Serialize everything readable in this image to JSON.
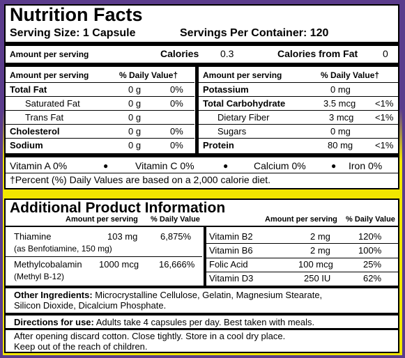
{
  "nutrition": {
    "title": "Nutrition Facts",
    "serving_size": "Serving Size: 1 Capsule",
    "servings_per_container": "Servings Per Container: 120",
    "amount_per_serving": "Amount per serving",
    "calories_label": "Calories",
    "calories_value": "0.3",
    "calories_fat_label": "Calories from Fat",
    "calories_fat_value": "0",
    "left_table": {
      "h_amount": "Amount per serving",
      "h_dv": "% Daily Value†",
      "rows": [
        {
          "name": "Total Fat",
          "amount": "0 g",
          "dv": "0%"
        },
        {
          "name": "Saturated Fat",
          "amount": "0 g",
          "dv": "0%"
        },
        {
          "name": "Trans Fat",
          "amount": "0 g",
          "dv": ""
        },
        {
          "name": "Cholesterol",
          "amount": "0 g",
          "dv": "0%"
        },
        {
          "name": "Sodium",
          "amount": "0 g",
          "dv": "0%"
        }
      ]
    },
    "right_table": {
      "h_amount": "Amount per serving",
      "h_dv": "% Daily Value†",
      "rows": [
        {
          "name": "Potassium",
          "amount": "0 mg",
          "dv": ""
        },
        {
          "name": "Total Carbohydrate",
          "amount": "3.5 mcg",
          "dv": "<1%"
        },
        {
          "name": "Dietary Fiber",
          "amount": "3 mcg",
          "dv": "<1%"
        },
        {
          "name": "Sugars",
          "amount": "0 mg",
          "dv": ""
        },
        {
          "name": "Protein",
          "amount": "80 mg",
          "dv": "<1%"
        }
      ]
    },
    "vitamins": [
      "Vitamin A 0%",
      "Vitamin C 0%",
      "Calcium 0%",
      "Iron 0%"
    ],
    "footnote": "†Percent (%) Daily Values are based on a 2,000 calorie diet."
  },
  "additional": {
    "title": "Additional Product Information",
    "h_amount": "Amount per serving",
    "h_dv": "% Daily Value",
    "left": [
      {
        "name": "Thiamine",
        "amount": "103 mg",
        "dv": "6,875%",
        "sub": "(as Benfotiamine, 150 mg)"
      },
      {
        "name": "Methylcobalamin",
        "amount": "1000 mcg",
        "dv": "16,666%",
        "sub": "(Methyl B-12)"
      }
    ],
    "right": [
      {
        "name": "Vitamin B2",
        "amount": "2 mg",
        "dv": "120%"
      },
      {
        "name": "Vitamin B6",
        "amount": "2 mg",
        "dv": "100%"
      },
      {
        "name": "Folic Acid",
        "amount": "100 mcg",
        "dv": "25%"
      },
      {
        "name": "Vitamin D3",
        "amount": "250 IU",
        "dv": "62%"
      }
    ],
    "other_label": "Other Ingredients:",
    "other_line1": " Microcrystalline Cellulose, Gelatin, Magnesium Stearate,",
    "other_line2": "Silicon Dioxide, Dicalcium Phosphate.",
    "directions_label": "Directions for use:",
    "directions_text": " Adults take 4 capsules per day. Best taken with meals.",
    "storage_line1": "After opening discard cotton. Close tightly. Store in a cool dry place.",
    "storage_line2": "Keep out of the reach of children."
  }
}
